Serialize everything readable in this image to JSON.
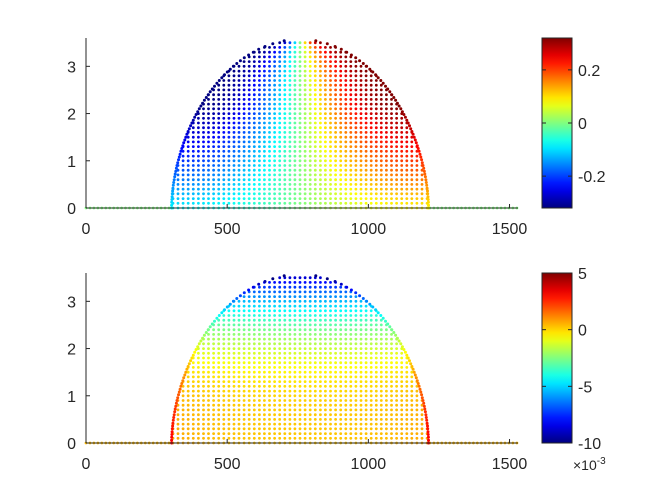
{
  "chart_data": [
    {
      "type": "scatter",
      "title": "",
      "xlabel": "",
      "ylabel": "",
      "xlim": [
        0,
        1530
      ],
      "ylim": [
        0,
        3.6
      ],
      "xticks": [
        "0",
        "500",
        "1000",
        "1500"
      ],
      "yticks": [
        "0",
        "1",
        "2",
        "3"
      ],
      "grid": false,
      "domain": {
        "x_start": 303,
        "x_end": 1213,
        "peak_x": 758,
        "peak_y": 3.57,
        "column_spacing": 18,
        "row_spacing": 0.1
      },
      "field": "antisymmetric: negative left of peak, positive right, magnitude largest in upper interior",
      "colorbar": {
        "colormap": "jet",
        "limits": [
          -0.32,
          0.32
        ],
        "ticks": [
          "-0.2",
          "0",
          "0.2"
        ],
        "tick_values": [
          -0.2,
          0,
          0.2
        ],
        "multiplier": ""
      }
    },
    {
      "type": "scatter",
      "title": "",
      "xlabel": "",
      "ylabel": "",
      "xlim": [
        0,
        1530
      ],
      "ylim": [
        0,
        3.6
      ],
      "xticks": [
        "0",
        "500",
        "1000",
        "1500"
      ],
      "yticks": [
        "0",
        "1",
        "2",
        "3"
      ],
      "grid": false,
      "domain": {
        "x_start": 303,
        "x_end": 1213,
        "peak_x": 758,
        "peak_y": 3.57,
        "column_spacing": 18,
        "row_spacing": 0.1
      },
      "field": "symmetric: near 0 in the interior, up to 3 at the lower boundary, down to -9 at the peak (units of 1e-3)",
      "colorbar": {
        "colormap": "jet",
        "limits": [
          -10,
          5
        ],
        "ticks": [
          "-10",
          "-5",
          "0",
          "5"
        ],
        "tick_values": [
          -10,
          -5,
          0,
          5
        ],
        "multiplier_base": "×10",
        "multiplier_exp": "-3"
      }
    }
  ]
}
